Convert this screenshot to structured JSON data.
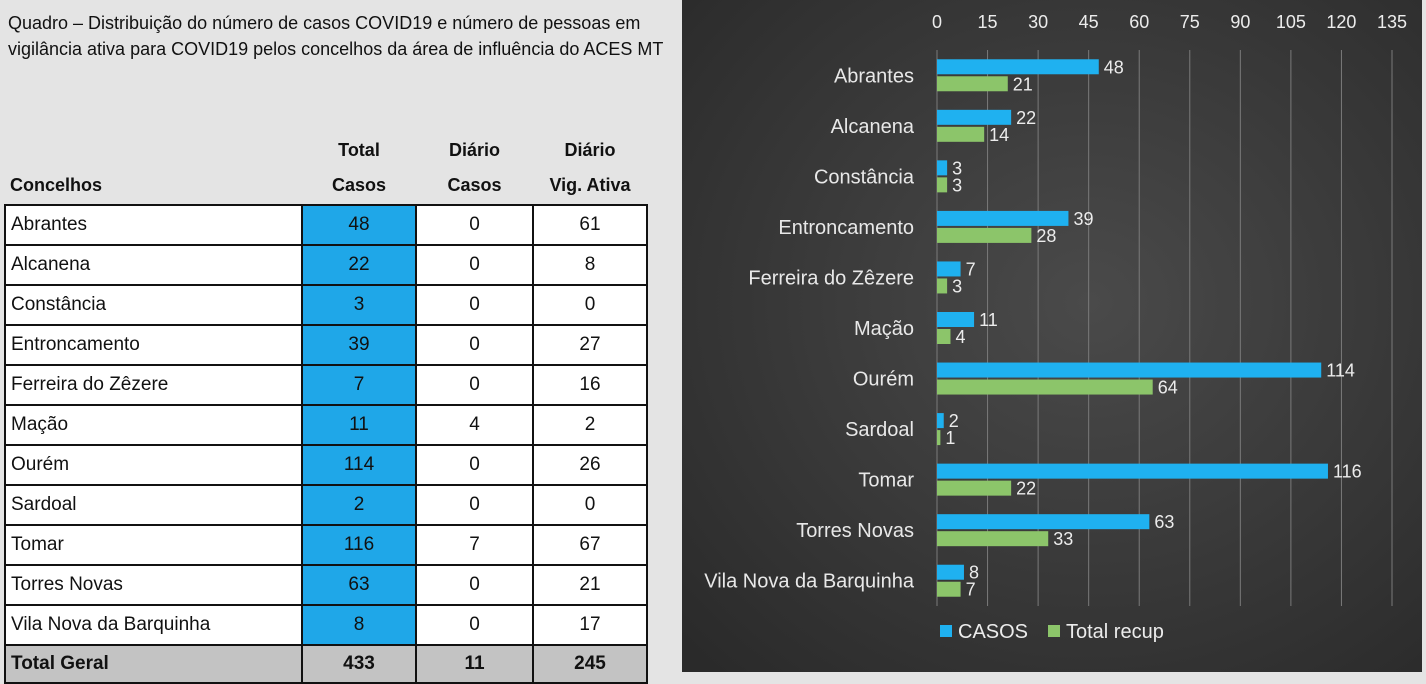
{
  "caption": "Quadro – Distribuição do número de casos COVID19 e número de pessoas em vigilância ativa para COVID19 pelos concelhos da área de influência do ACES MT",
  "table": {
    "headers": {
      "concelhos": "Concelhos",
      "total_line1": "Total",
      "total_line2": "Casos",
      "diario_casos_line1": "Diário",
      "diario_casos_line2": "Casos",
      "diario_vig_line1": "Diário",
      "diario_vig_line2": "Vig. Ativa"
    },
    "rows": [
      {
        "name": "Abrantes",
        "total": "48",
        "diario_casos": "0",
        "diario_vig": "61"
      },
      {
        "name": "Alcanena",
        "total": "22",
        "diario_casos": "0",
        "diario_vig": "8"
      },
      {
        "name": "Constância",
        "total": "3",
        "diario_casos": "0",
        "diario_vig": "0"
      },
      {
        "name": "Entroncamento",
        "total": "39",
        "diario_casos": "0",
        "diario_vig": "27"
      },
      {
        "name": "Ferreira do Zêzere",
        "total": "7",
        "diario_casos": "0",
        "diario_vig": "16"
      },
      {
        "name": "Mação",
        "total": "11",
        "diario_casos": "4",
        "diario_vig": "2"
      },
      {
        "name": "Ourém",
        "total": "114",
        "diario_casos": "0",
        "diario_vig": "26"
      },
      {
        "name": "Sardoal",
        "total": "2",
        "diario_casos": "0",
        "diario_vig": "0"
      },
      {
        "name": "Tomar",
        "total": "116",
        "diario_casos": "7",
        "diario_vig": "67"
      },
      {
        "name": "Torres Novas",
        "total": "63",
        "diario_casos": "0",
        "diario_vig": "21"
      },
      {
        "name": "Vila Nova da Barquinha",
        "total": "8",
        "diario_casos": "0",
        "diario_vig": "17"
      }
    ],
    "total_row": {
      "name": "Total Geral",
      "total": "433",
      "diario_casos": "11",
      "diario_vig": "245"
    }
  },
  "chart_data": {
    "type": "bar",
    "orientation": "horizontal",
    "categories": [
      "Abrantes",
      "Alcanena",
      "Constância",
      "Entroncamento",
      "Ferreira do Zêzere",
      "Mação",
      "Ourém",
      "Sardoal",
      "Tomar",
      "Torres Novas",
      "Vila Nova da Barquinha"
    ],
    "series": [
      {
        "name": "CASOS",
        "values": [
          48,
          22,
          3,
          39,
          7,
          11,
          114,
          2,
          116,
          63,
          8
        ],
        "color": "#1fb1f0"
      },
      {
        "name": "Total recup",
        "values": [
          21,
          14,
          3,
          28,
          3,
          4,
          64,
          1,
          22,
          33,
          7
        ],
        "color": "#8cc56a"
      }
    ],
    "xlim": [
      0,
      135
    ],
    "xticks": [
      0,
      15,
      30,
      45,
      60,
      75,
      90,
      105,
      120,
      135
    ],
    "x_axis_position": "top",
    "grid": true,
    "legend_position": "bottom",
    "colors": {
      "background": "#3c3c3c",
      "gridline": "#7a7a7a"
    }
  }
}
